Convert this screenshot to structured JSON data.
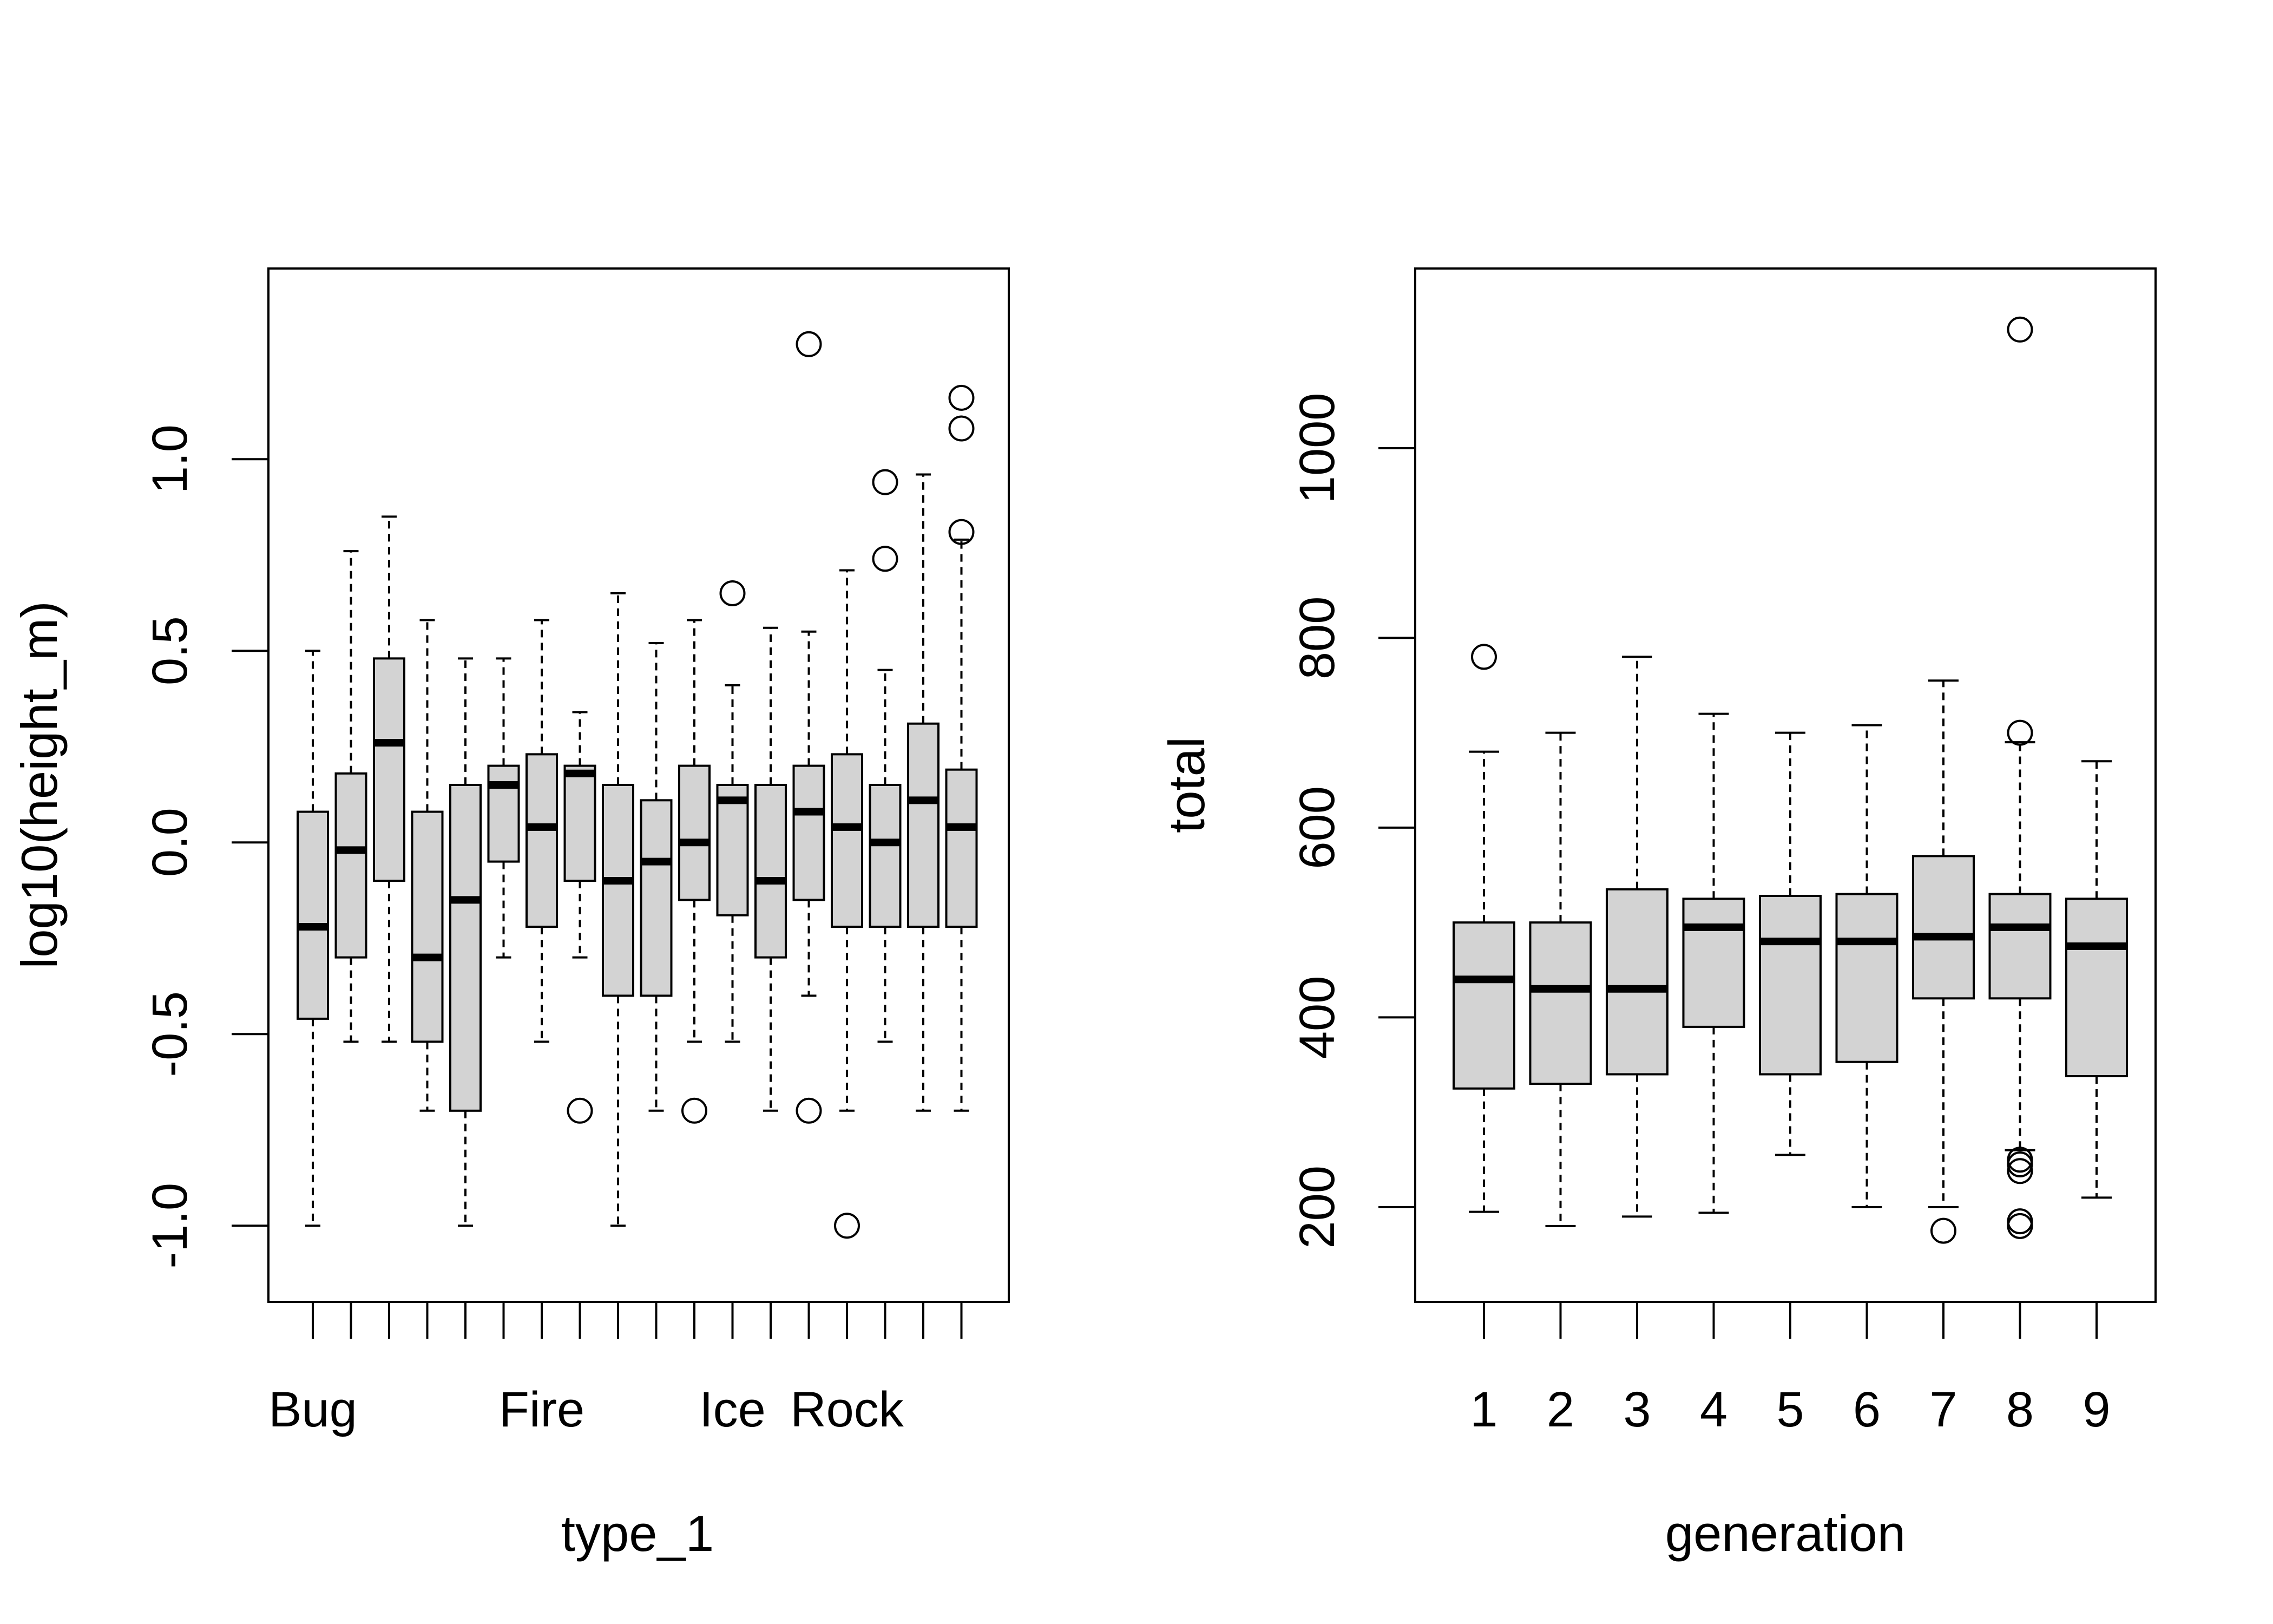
{
  "colors": {
    "box_fill": "#d3d3d3",
    "stroke": "#000000",
    "background": "#ffffff"
  },
  "chart_data": [
    {
      "type": "box",
      "xlabel": "type_1",
      "ylabel": "log10(height_m)",
      "ylim": [
        -1.1,
        1.4
      ],
      "yticks": [
        "-1.0",
        "-0.5",
        "0.0",
        "0.5",
        "1.0"
      ],
      "ytick_values": [
        -1.0,
        -0.5,
        0.0,
        0.5,
        1.0
      ],
      "xtick_labels": [
        "Bug",
        "",
        "",
        "",
        "",
        "",
        "Fire",
        "",
        "",
        "",
        "",
        "Ice",
        "",
        "",
        "Rock",
        "",
        "",
        ""
      ],
      "grid": false,
      "boxes": [
        {
          "whisker_low": -1.0,
          "q1": -0.46,
          "median": -0.22,
          "q3": 0.08,
          "whisker_high": 0.5,
          "outliers": []
        },
        {
          "whisker_low": -0.52,
          "q1": -0.3,
          "median": -0.02,
          "q3": 0.18,
          "whisker_high": 0.76,
          "outliers": []
        },
        {
          "whisker_low": -0.52,
          "q1": -0.1,
          "median": 0.26,
          "q3": 0.48,
          "whisker_high": 0.85,
          "outliers": []
        },
        {
          "whisker_low": -0.7,
          "q1": -0.52,
          "median": -0.3,
          "q3": 0.08,
          "whisker_high": 0.58,
          "outliers": []
        },
        {
          "whisker_low": -1.0,
          "q1": -0.7,
          "median": -0.15,
          "q3": 0.15,
          "whisker_high": 0.48,
          "outliers": []
        },
        {
          "whisker_low": -0.3,
          "q1": -0.05,
          "median": 0.15,
          "q3": 0.2,
          "whisker_high": 0.48,
          "outliers": []
        },
        {
          "whisker_low": -0.52,
          "q1": -0.22,
          "median": 0.04,
          "q3": 0.23,
          "whisker_high": 0.58,
          "outliers": []
        },
        {
          "whisker_low": -0.3,
          "q1": -0.1,
          "median": 0.18,
          "q3": 0.2,
          "whisker_high": 0.34,
          "outliers": [
            -0.7
          ]
        },
        {
          "whisker_low": -1.0,
          "q1": -0.4,
          "median": -0.1,
          "q3": 0.15,
          "whisker_high": 0.65,
          "outliers": []
        },
        {
          "whisker_low": -0.7,
          "q1": -0.4,
          "median": -0.05,
          "q3": 0.11,
          "whisker_high": 0.52,
          "outliers": []
        },
        {
          "whisker_low": -0.52,
          "q1": -0.15,
          "median": 0.0,
          "q3": 0.2,
          "whisker_high": 0.58,
          "outliers": [
            -0.7
          ]
        },
        {
          "whisker_low": -0.52,
          "q1": -0.19,
          "median": 0.11,
          "q3": 0.15,
          "whisker_high": 0.41,
          "outliers": [
            0.65
          ]
        },
        {
          "whisker_low": -0.7,
          "q1": -0.3,
          "median": -0.1,
          "q3": 0.15,
          "whisker_high": 0.56,
          "outliers": []
        },
        {
          "whisker_low": -0.4,
          "q1": -0.15,
          "median": 0.08,
          "q3": 0.2,
          "whisker_high": 0.55,
          "outliers": [
            1.3,
            -0.7
          ]
        },
        {
          "whisker_low": -0.7,
          "q1": -0.22,
          "median": 0.04,
          "q3": 0.23,
          "whisker_high": 0.71,
          "outliers": [
            -1.0
          ]
        },
        {
          "whisker_low": -0.52,
          "q1": -0.22,
          "median": 0.0,
          "q3": 0.15,
          "whisker_high": 0.45,
          "outliers": [
            0.94,
            0.74
          ]
        },
        {
          "whisker_low": -0.7,
          "q1": -0.22,
          "median": 0.11,
          "q3": 0.31,
          "whisker_high": 0.96,
          "outliers": []
        },
        {
          "whisker_low": -0.7,
          "q1": -0.22,
          "median": 0.04,
          "q3": 0.19,
          "whisker_high": 0.79,
          "outliers": [
            1.16,
            1.08,
            0.81
          ]
        }
      ]
    },
    {
      "type": "box",
      "xlabel": "generation",
      "ylabel": "total",
      "ylim": [
        140,
        1150
      ],
      "yticks": [
        "200",
        "400",
        "600",
        "800",
        "1000"
      ],
      "ytick_values": [
        200,
        400,
        600,
        800,
        1000
      ],
      "xtick_labels": [
        "1",
        "2",
        "3",
        "4",
        "5",
        "6",
        "7",
        "8",
        "9"
      ],
      "grid": false,
      "boxes": [
        {
          "whisker_low": 195,
          "q1": 325,
          "median": 440,
          "q3": 500,
          "whisker_high": 680,
          "outliers": [
            780
          ]
        },
        {
          "whisker_low": 180,
          "q1": 330,
          "median": 430,
          "q3": 500,
          "whisker_high": 700,
          "outliers": []
        },
        {
          "whisker_low": 190,
          "q1": 340,
          "median": 430,
          "q3": 535,
          "whisker_high": 780,
          "outliers": []
        },
        {
          "whisker_low": 194,
          "q1": 390,
          "median": 495,
          "q3": 525,
          "whisker_high": 720,
          "outliers": []
        },
        {
          "whisker_low": 255,
          "q1": 340,
          "median": 480,
          "q3": 528,
          "whisker_high": 700,
          "outliers": []
        },
        {
          "whisker_low": 200,
          "q1": 353,
          "median": 480,
          "q3": 530,
          "whisker_high": 708,
          "outliers": []
        },
        {
          "whisker_low": 200,
          "q1": 420,
          "median": 485,
          "q3": 570,
          "whisker_high": 755,
          "outliers": [
            175
          ]
        },
        {
          "whisker_low": 260,
          "q1": 420,
          "median": 495,
          "q3": 530,
          "whisker_high": 690,
          "outliers": [
            1125,
            700,
            250,
            245,
            238,
            185,
            180
          ]
        },
        {
          "whisker_low": 210,
          "q1": 338,
          "median": 475,
          "q3": 525,
          "whisker_high": 670,
          "outliers": []
        }
      ]
    }
  ]
}
